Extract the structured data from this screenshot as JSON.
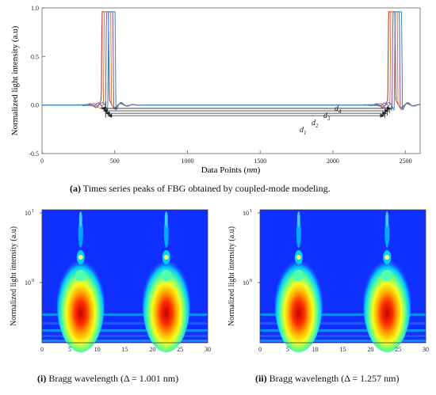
{
  "chart_data": [
    {
      "type": "line",
      "panel": "a",
      "xlabel": "Data Points (nm)",
      "ylabel": "Normalized light intensity (a.u)",
      "xlim": [
        0,
        2600
      ],
      "ylim": [
        -0.5,
        1.0
      ],
      "x_ticks": [
        "0",
        "500",
        "1000",
        "1500",
        "2000",
        "2500"
      ],
      "y_ticks": [
        "-0.5",
        "0.0",
        "0.5",
        "1.0"
      ],
      "grid": false,
      "series": [
        {
          "color": "#cc3333",
          "peaks": [
            [
              410,
              460
            ],
            [
              2380,
              2430
            ]
          ]
        },
        {
          "color": "#e0803a",
          "peaks": [
            [
              425,
              475
            ],
            [
              2395,
              2445
            ]
          ]
        },
        {
          "color": "#8a5fb0",
          "peaks": [
            [
              440,
              490
            ],
            [
              2410,
              2460
            ]
          ]
        },
        {
          "color": "#3f8fd0",
          "peaks": [
            [
              455,
              505
            ],
            [
              2425,
              2475
            ]
          ]
        }
      ],
      "annotations": [
        "d1",
        "d2",
        "d3",
        "d4"
      ],
      "arrows": [
        {
          "label": "d1",
          "from": 470,
          "to": 2380
        },
        {
          "label": "d2",
          "from": 455,
          "to": 2395
        },
        {
          "label": "d3",
          "from": 440,
          "to": 2410
        },
        {
          "label": "d4",
          "from": 425,
          "to": 2425
        }
      ]
    },
    {
      "type": "heatmap",
      "panel": "i",
      "ylabel": "Normalized light intensity (a.u)",
      "xlim": [
        0,
        30
      ],
      "x_ticks": [
        "0",
        "5",
        "10",
        "15",
        "20",
        "25",
        "30"
      ],
      "y_ticks": [
        "10",
        "10"
      ],
      "y_tick_exps": [
        "1",
        "0"
      ],
      "y_scale": "log",
      "peak_centers": [
        7,
        22.5
      ],
      "colormap": "jet"
    },
    {
      "type": "heatmap",
      "panel": "ii",
      "ylabel": "Normalized light intensity (a.u)",
      "xlim": [
        0,
        30
      ],
      "x_ticks": [
        "0",
        "5",
        "10",
        "15",
        "20",
        "25",
        "30"
      ],
      "y_ticks": [
        "10",
        "10"
      ],
      "y_tick_exps": [
        "1",
        "0"
      ],
      "y_scale": "log",
      "peak_centers": [
        7,
        23
      ],
      "colormap": "jet"
    }
  ],
  "captions": {
    "a_label": "(a)",
    "a_text": " Times series peaks of FBG obtained by coupled-mode modeling.",
    "i_label": "(i)",
    "i_text": " Bragg wavelength (Δ = 1.001 nm)",
    "ii_label": "(ii)",
    "ii_text": " Bragg wavelength (Δ = 1.257 nm)"
  },
  "axis_texts": {
    "top_ylabel": "Normalized light intensity (a.u)",
    "top_xlabel_main": "Data Points (",
    "top_xlabel_unit": "nm",
    "top_xlabel_end": ")",
    "left_ylabel": "Normalized light intensity (a.u)",
    "right_ylabel": "Normalized light intensity (a.u)"
  }
}
